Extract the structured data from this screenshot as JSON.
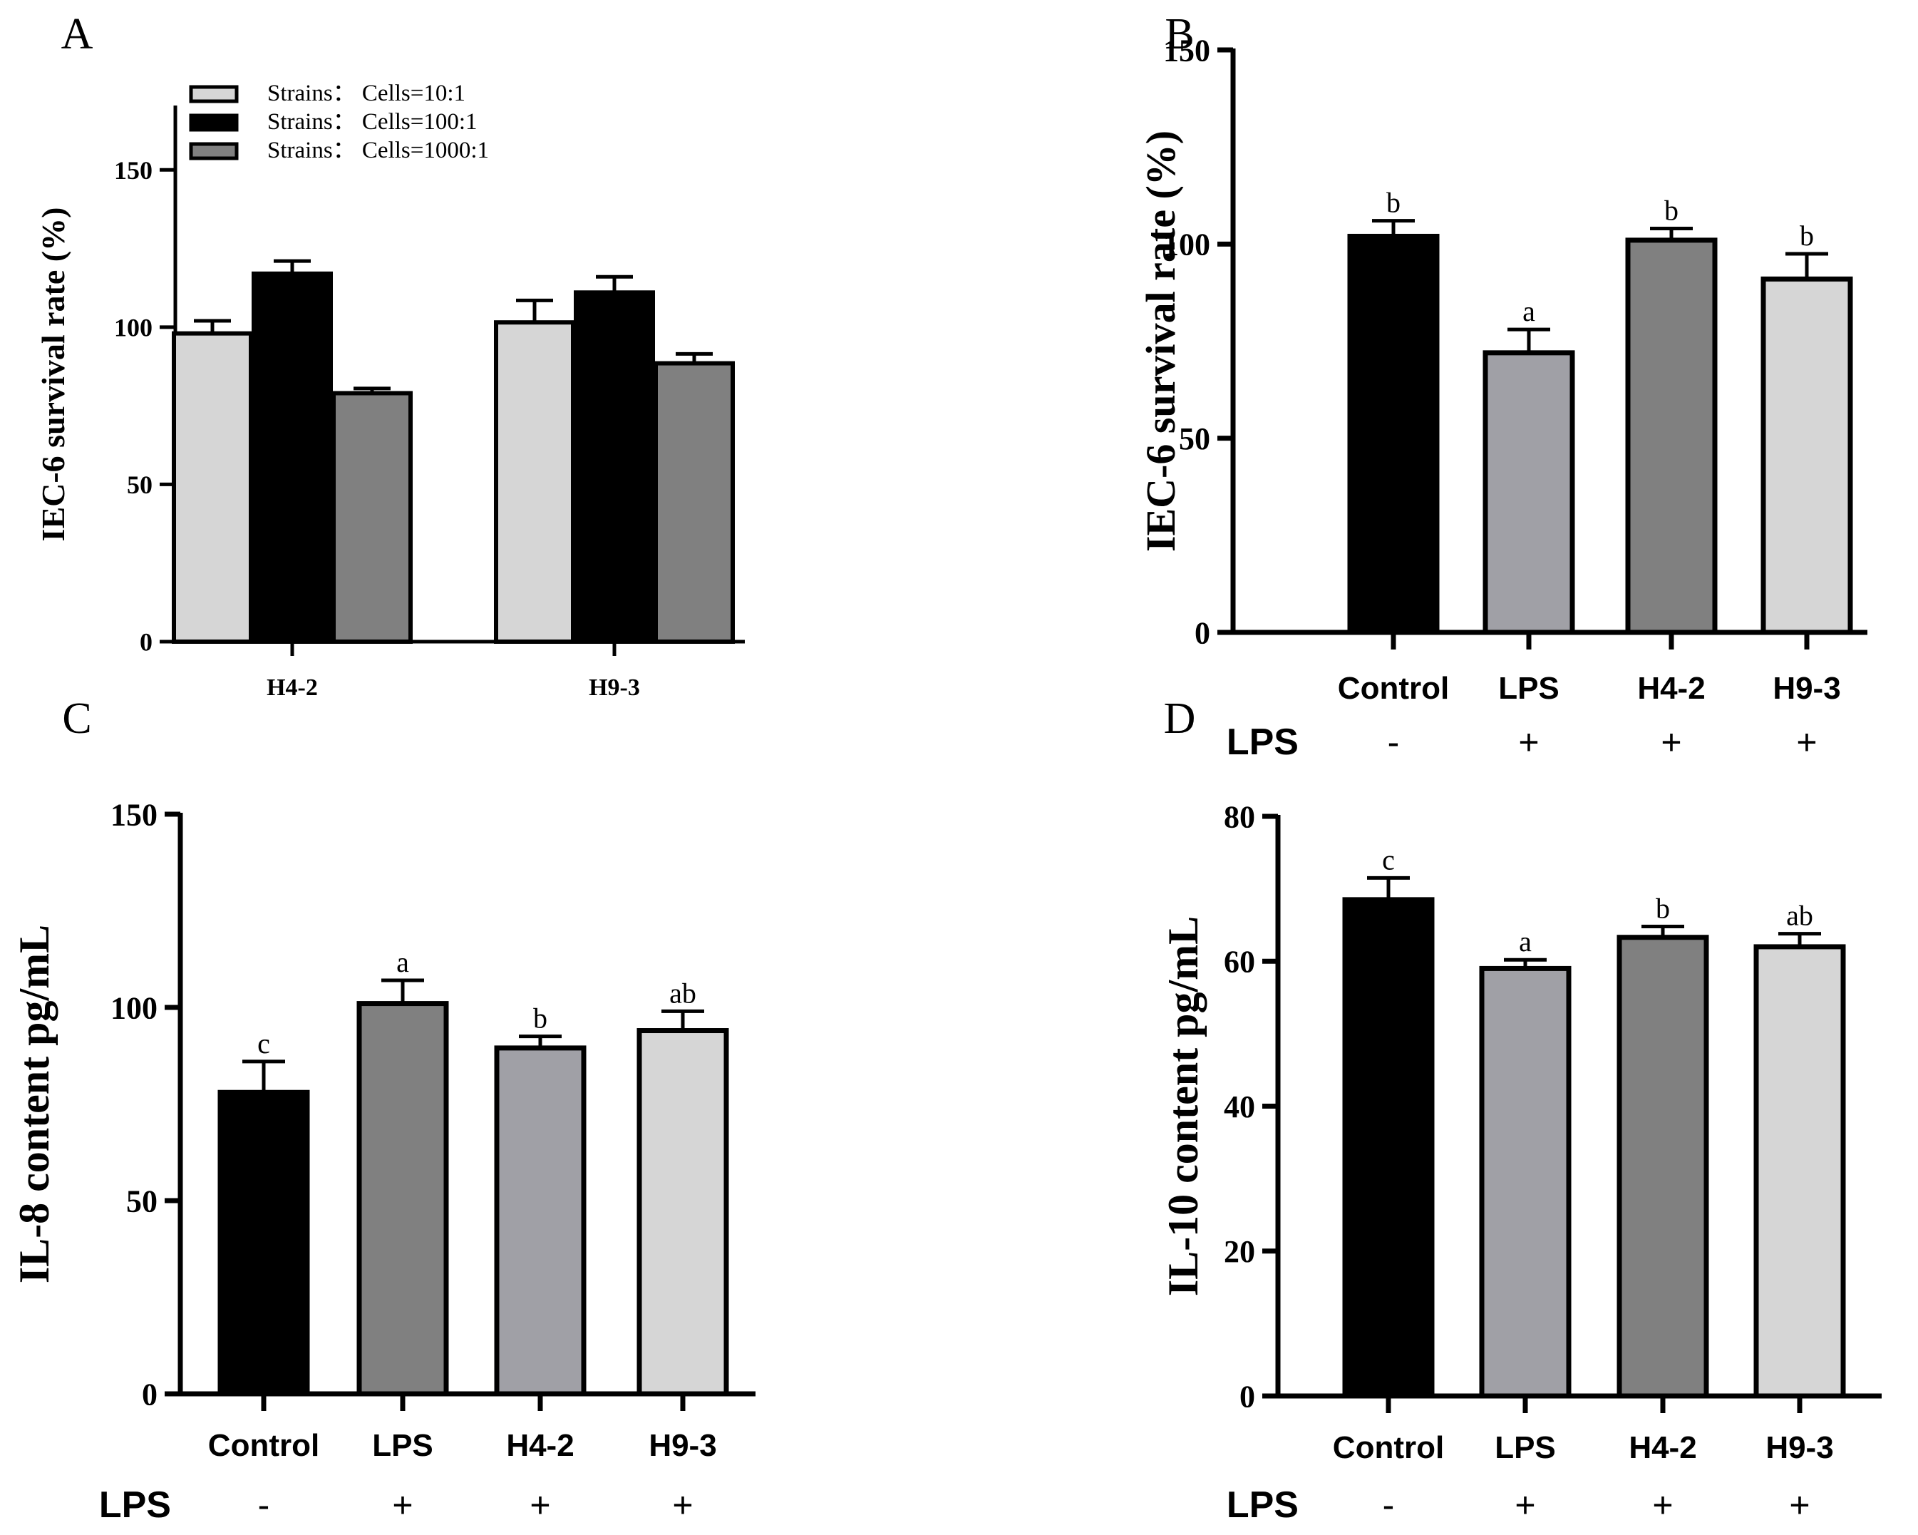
{
  "colors": {
    "black": "#000000",
    "dark_gray": "#808080",
    "mid_gray": "#a0a0a6",
    "light_gray": "#d6d6d6"
  },
  "chart_data": [
    {
      "panel": "A",
      "type": "bar",
      "ylabel": "IEC-6 survival rate (%)",
      "ylim": [
        0,
        170
      ],
      "yticks": [
        0,
        50,
        100,
        150
      ],
      "categories": [
        "H4-2",
        "H9-3"
      ],
      "legend_position": "top-left",
      "series": [
        {
          "name": "Strains： Cells=10:1",
          "values": [
            98,
            101.5
          ],
          "errors": [
            4,
            7
          ],
          "color": "#d6d6d6"
        },
        {
          "name": "Strains： Cells=100:1",
          "values": [
            117,
            111
          ],
          "errors": [
            4,
            5
          ],
          "color": "#000000"
        },
        {
          "name": "Strains： Cells=1000:1",
          "values": [
            79,
            88.5
          ],
          "errors": [
            1.5,
            3
          ],
          "color": "#808080"
        }
      ]
    },
    {
      "panel": "B",
      "type": "bar",
      "ylabel": "IEC-6 survival rate (%)",
      "ylim": [
        0,
        150
      ],
      "yticks": [
        0,
        50,
        100,
        150
      ],
      "categories": [
        "Control",
        "LPS",
        "H4-2",
        "H9-3"
      ],
      "values": [
        102,
        72,
        101,
        91
      ],
      "errors": [
        4,
        6,
        3,
        6.5
      ],
      "sig_letters": [
        "b",
        "a",
        "b",
        "b"
      ],
      "colors": [
        "#000000",
        "#a0a0a6",
        "#808080",
        "#d6d6d6"
      ],
      "lps_row_label": "LPS",
      "lps_row": [
        "-",
        "+",
        "+",
        "+"
      ]
    },
    {
      "panel": "C",
      "type": "bar",
      "ylabel": "IL-8 content pg/mL",
      "ylim": [
        0,
        150
      ],
      "yticks": [
        0,
        50,
        100,
        150
      ],
      "categories": [
        "Control",
        "LPS",
        "H4-2",
        "H9-3"
      ],
      "values": [
        78,
        101,
        89.5,
        94
      ],
      "errors": [
        8,
        6,
        3,
        5
      ],
      "sig_letters": [
        "c",
        "a",
        "b",
        "ab"
      ],
      "colors": [
        "#000000",
        "#808080",
        "#a0a0a6",
        "#d6d6d6"
      ],
      "lps_row_label": "LPS",
      "lps_row": [
        "-",
        "+",
        "+",
        "+"
      ]
    },
    {
      "panel": "D",
      "type": "bar",
      "ylabel": "IL-10 content pg/mL",
      "ylim": [
        0,
        80
      ],
      "yticks": [
        0,
        20,
        40,
        60,
        80
      ],
      "categories": [
        "Control",
        "LPS",
        "H4-2",
        "H9-3"
      ],
      "values": [
        68.5,
        59,
        63.3,
        62
      ],
      "errors": [
        3,
        1.2,
        1.5,
        1.8
      ],
      "sig_letters": [
        "c",
        "a",
        "b",
        "ab"
      ],
      "colors": [
        "#000000",
        "#a0a0a6",
        "#808080",
        "#d6d6d6"
      ],
      "lps_row_label": "LPS",
      "lps_row": [
        "-",
        "+",
        "+",
        "+"
      ]
    }
  ]
}
